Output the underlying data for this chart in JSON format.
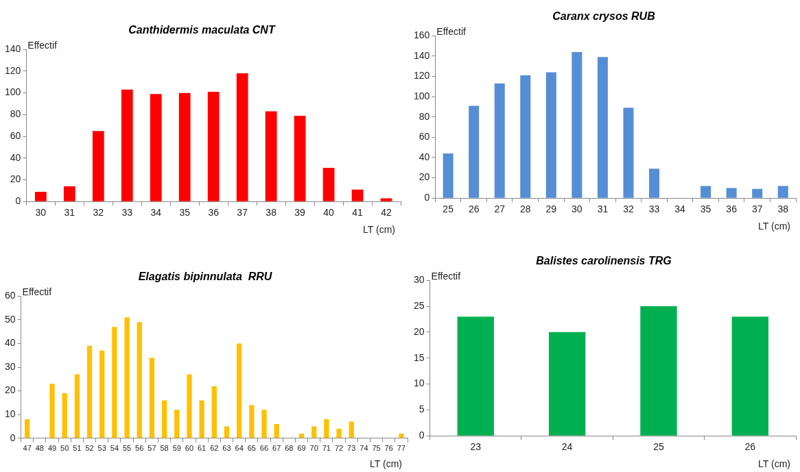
{
  "chart_data": [
    {
      "type": "bar",
      "title": "Canthidermis maculata CNT",
      "xlabel": "LT (cm)",
      "ylabel": "Effectif",
      "categories": [
        "30",
        "31",
        "32",
        "33",
        "34",
        "35",
        "36",
        "37",
        "38",
        "39",
        "40",
        "41",
        "42"
      ],
      "values": [
        9,
        14,
        65,
        103,
        99,
        100,
        101,
        118,
        83,
        79,
        31,
        11,
        3
      ],
      "color": "#ff0000",
      "ylim": [
        0,
        140
      ],
      "yticks": [
        0,
        20,
        40,
        60,
        80,
        100,
        120,
        140
      ]
    },
    {
      "type": "bar",
      "title": "Caranx crysos RUB",
      "xlabel": "LT (cm)",
      "ylabel": "Effectif",
      "categories": [
        "25",
        "26",
        "27",
        "28",
        "29",
        "30",
        "31",
        "32",
        "33",
        "34",
        "35",
        "36",
        "37",
        "38"
      ],
      "values": [
        44,
        91,
        113,
        121,
        124,
        144,
        139,
        89,
        29,
        0,
        12,
        10,
        9,
        12
      ],
      "color": "#558ed5",
      "ylim": [
        0,
        160
      ],
      "yticks": [
        0,
        20,
        40,
        60,
        80,
        100,
        120,
        140,
        160
      ]
    },
    {
      "type": "bar",
      "title": "Elagatis bipinnulata  RRU",
      "xlabel": "LT (cm)",
      "ylabel": "Effectif",
      "categories": [
        "47",
        "48",
        "49",
        "50",
        "51",
        "52",
        "53",
        "54",
        "55",
        "56",
        "57",
        "58",
        "59",
        "60",
        "61",
        "62",
        "63",
        "64",
        "65",
        "66",
        "67",
        "68",
        "69",
        "70",
        "71",
        "72",
        "73",
        "74",
        "75",
        "76",
        "77"
      ],
      "values": [
        8,
        0,
        23,
        19,
        27,
        39,
        37,
        47,
        51,
        49,
        34,
        16,
        12,
        27,
        16,
        22,
        5,
        40,
        14,
        12,
        6,
        0,
        2,
        5,
        8,
        4,
        7,
        0,
        0,
        0,
        2
      ],
      "color": "#ffc000",
      "ylim": [
        0,
        60
      ],
      "yticks": [
        0,
        10,
        20,
        30,
        40,
        50,
        60
      ]
    },
    {
      "type": "bar",
      "title": "Balistes carolinensis TRG",
      "xlabel": "LT (cm)",
      "ylabel": "Effectif",
      "categories": [
        "23",
        "24",
        "25",
        "26"
      ],
      "values": [
        23,
        20,
        25,
        23
      ],
      "color": "#00b050",
      "ylim": [
        0,
        30
      ],
      "yticks": [
        0,
        5,
        10,
        15,
        20,
        25,
        30
      ]
    }
  ]
}
